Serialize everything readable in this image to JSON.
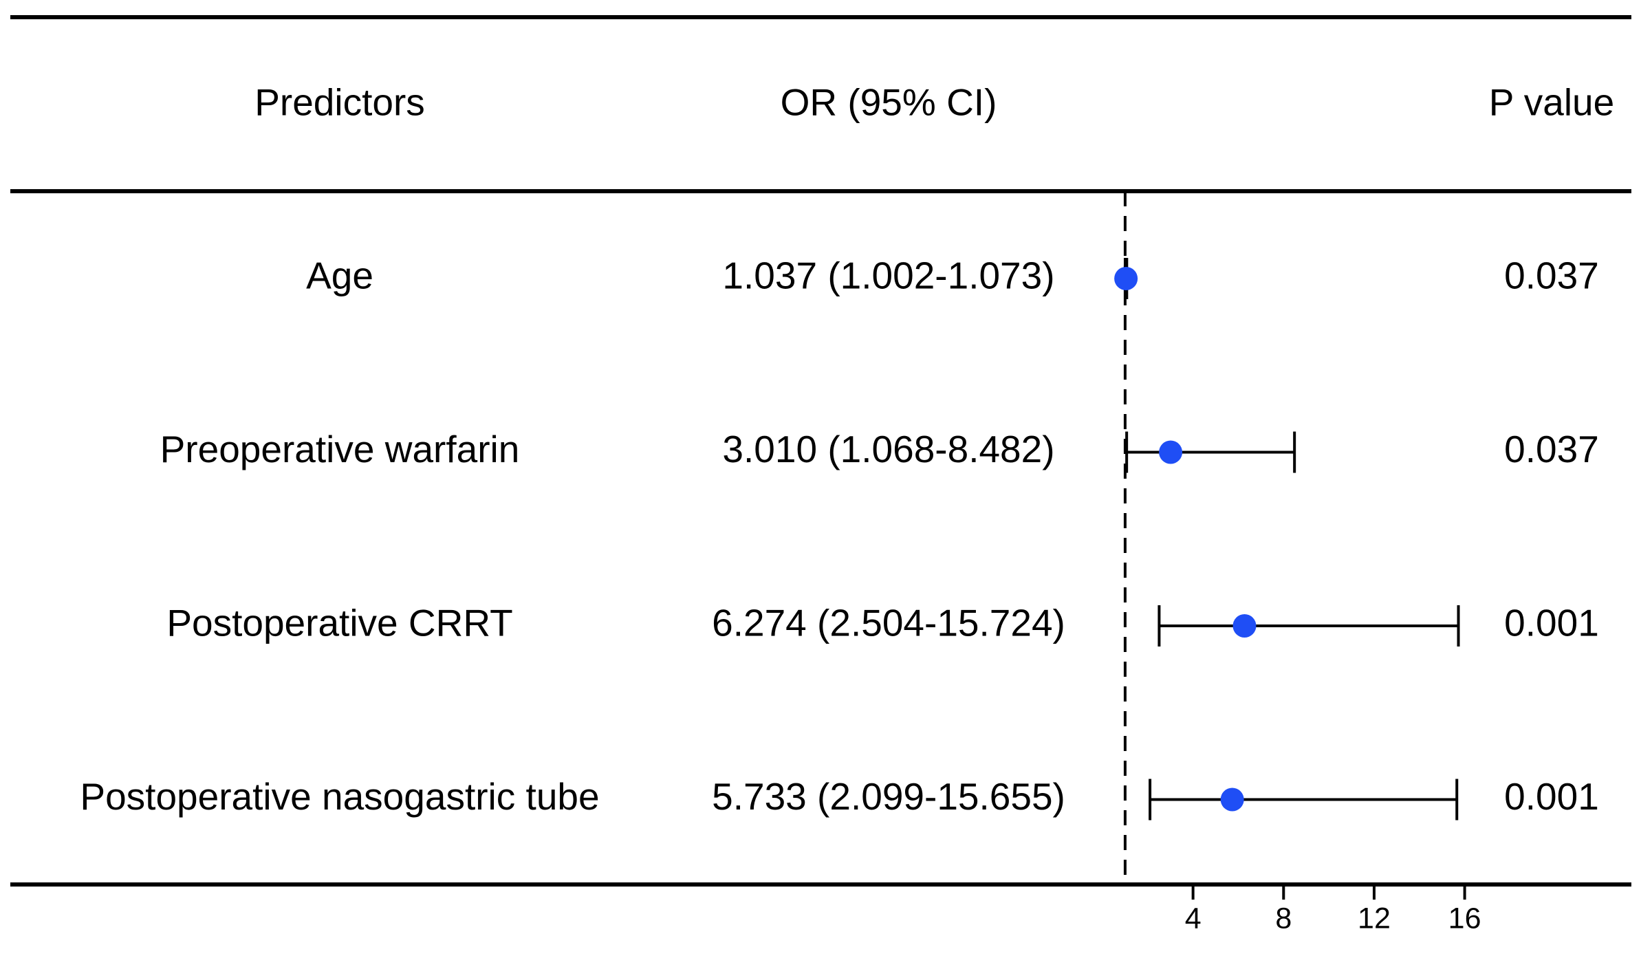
{
  "chart_data": {
    "type": "forest",
    "headers": [
      "Predictors",
      "OR (95% CI)",
      "P value"
    ],
    "categories": [
      "Age",
      "Preoperative warfarin",
      "Postoperative CRRT",
      "Postoperative nasogastric tube"
    ],
    "values": [
      1.037,
      3.01,
      6.274,
      5.733
    ],
    "lower": [
      1.002,
      1.068,
      2.504,
      2.099
    ],
    "upper": [
      1.073,
      8.482,
      15.724,
      15.655
    ],
    "ci_labels": [
      "1.037 (1.002-1.073)",
      "3.010 (1.068-8.482)",
      "6.274 (2.504-15.724)",
      "5.733 (2.099-15.655)"
    ],
    "p_values": [
      "0.037",
      "0.037",
      "0.001",
      "0.001"
    ],
    "reference": 1,
    "xlim": [
      0,
      23
    ],
    "xticks": [
      4,
      8,
      12,
      16
    ],
    "color": "#1f4ef5"
  }
}
